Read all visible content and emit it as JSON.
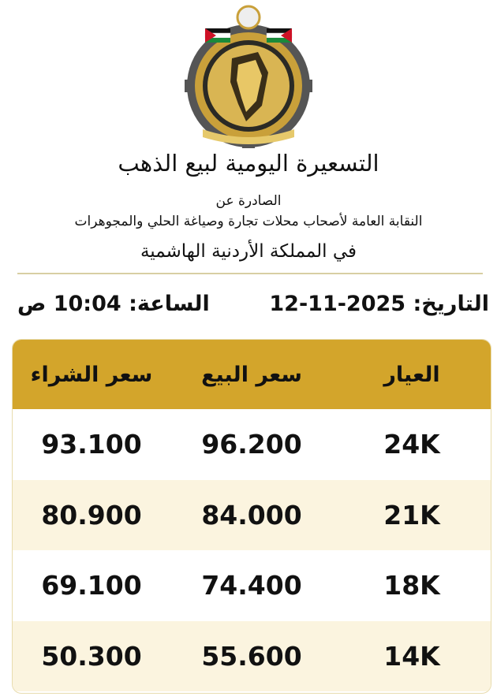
{
  "header": {
    "title": "التسعيرة اليومية لبيع الذهب",
    "issued_by": "الصادرة عن",
    "organization": "النقابة العامة لأصحاب محلات تجارة وصياغة الحلي والمجوهرات",
    "country": "في المملكة الأردنية الهاشمية"
  },
  "meta": {
    "date_label": "التاريخ:",
    "date": "12-11-2025",
    "time_label": "الساعة:",
    "time": "10:04 ص"
  },
  "colors": {
    "gold": "#d3a52b",
    "row_alt": "#fbf4df"
  },
  "table": {
    "columns": [
      "العيار",
      "سعر البيع",
      "سعر الشراء"
    ],
    "rows": [
      {
        "karat": "24K",
        "sell": "96.200",
        "buy": "93.100"
      },
      {
        "karat": "21K",
        "sell": "84.000",
        "buy": "80.900"
      },
      {
        "karat": "18K",
        "sell": "74.400",
        "buy": "69.100"
      },
      {
        "karat": "14K",
        "sell": "55.600",
        "buy": "50.300"
      }
    ]
  }
}
